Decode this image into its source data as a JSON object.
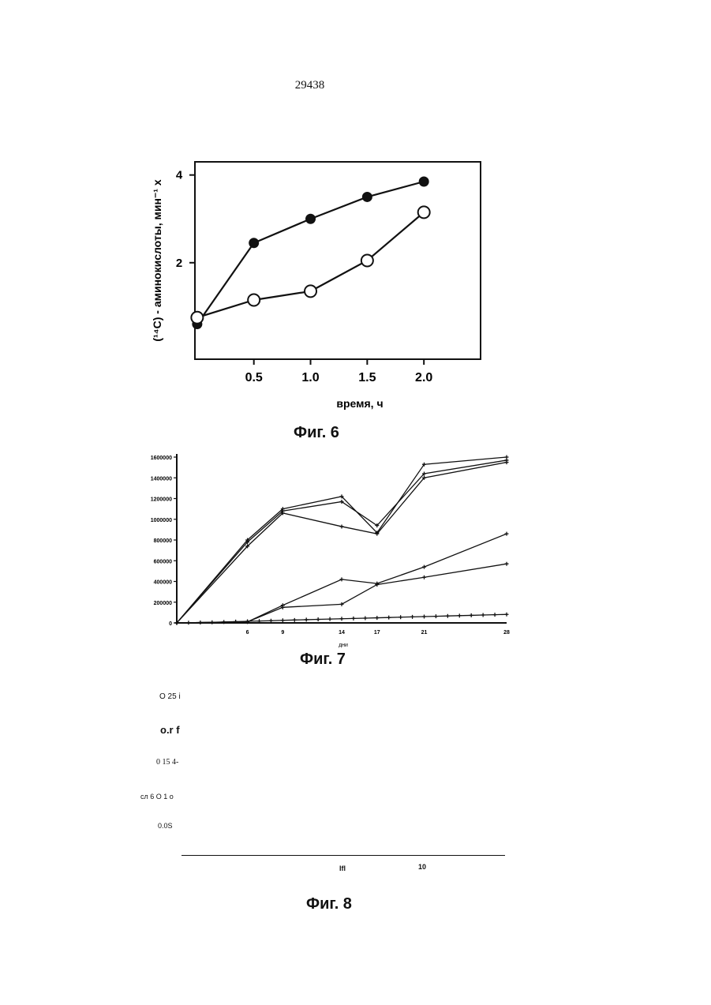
{
  "page_number": "29438",
  "chart_data": [
    {
      "type": "line",
      "caption": "Фиг. 6",
      "xlabel": "время, ч",
      "ylabel": "(¹⁴C) - аминокислоты, мин⁻¹ x",
      "x_ticks": [
        "0.5",
        "1.0",
        "1.5",
        "2.0"
      ],
      "y_ticks": [
        "2",
        "4"
      ],
      "xlim": [
        -0.02,
        2.5
      ],
      "ylim": [
        -0.2,
        4.3
      ],
      "markers": [
        "filled-circle",
        "open-circle"
      ],
      "series": [
        {
          "x": [
            0,
            0.5,
            1.0,
            1.5,
            2.0
          ],
          "values": [
            0.6,
            2.45,
            3.0,
            3.5,
            3.85
          ]
        },
        {
          "x": [
            0,
            0.5,
            1.0,
            1.5,
            2.0
          ],
          "values": [
            0.75,
            1.15,
            1.35,
            2.05,
            3.15
          ]
        }
      ]
    },
    {
      "type": "line",
      "caption": "Фиг. 7",
      "xlabel": "дни",
      "x_ticks": [
        "6",
        "9",
        "14",
        "17",
        "21",
        "28"
      ],
      "y_ticks": [
        "0",
        "200000",
        "400000",
        "600000",
        "800000",
        "1000000",
        "1200000",
        "1400000",
        "1600000"
      ],
      "xlim": [
        0,
        28
      ],
      "ylim": [
        0,
        1600000
      ],
      "series": [
        {
          "x": [
            0,
            6,
            9,
            14,
            17,
            21,
            28
          ],
          "values": [
            0,
            800000,
            1100000,
            1220000,
            870000,
            1530000,
            1600000
          ]
        },
        {
          "x": [
            0,
            6,
            9,
            14,
            17,
            21,
            28
          ],
          "values": [
            0,
            780000,
            1080000,
            1170000,
            940000,
            1440000,
            1570000
          ]
        },
        {
          "x": [
            0,
            6,
            9,
            14,
            17,
            21,
            28
          ],
          "values": [
            0,
            740000,
            1060000,
            930000,
            860000,
            1400000,
            1550000
          ]
        },
        {
          "x": [
            0,
            6,
            9,
            14,
            17,
            21,
            28
          ],
          "values": [
            0,
            10000,
            170000,
            420000,
            380000,
            540000,
            860000
          ]
        },
        {
          "x": [
            0,
            6,
            9,
            14,
            17,
            21,
            28
          ],
          "values": [
            0,
            10000,
            150000,
            180000,
            370000,
            440000,
            570000
          ]
        },
        {
          "x": [
            0,
            1,
            2,
            3,
            4,
            5,
            6,
            7,
            8,
            9,
            10,
            11,
            12,
            13,
            14,
            15,
            16,
            17,
            18,
            19,
            20,
            21,
            22,
            23,
            24,
            25,
            26,
            27,
            28
          ],
          "values": [
            0,
            2000,
            4000,
            6000,
            9000,
            12000,
            15000,
            18000,
            21000,
            25000,
            28000,
            31000,
            34000,
            37000,
            40000,
            43000,
            46000,
            49000,
            52000,
            55000,
            58000,
            61000,
            64000,
            67000,
            70000,
            73000,
            76000,
            79000,
            82000
          ]
        }
      ]
    },
    {
      "type": "line",
      "caption": "Фиг. 8",
      "y_ticks": [
        "O 25  i",
        "o.r  f",
        "0 15  4-",
        "сл 6   O  1   о",
        "0.0S"
      ],
      "x_ticks": [
        "Ifl",
        "10"
      ],
      "series": []
    }
  ]
}
